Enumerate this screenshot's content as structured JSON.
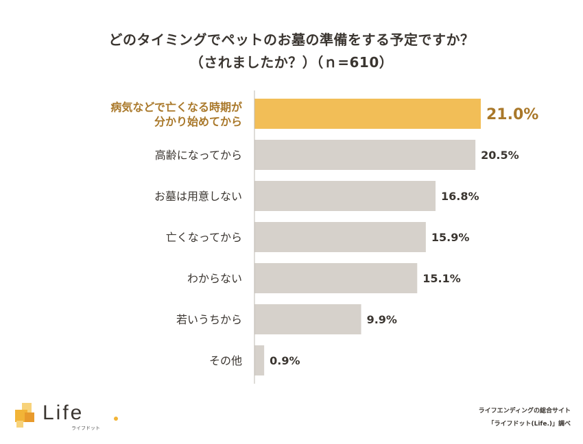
{
  "title_line1": "どのタイミングでペットのお墓の準備をする予定ですか？",
  "title_line2": "（されましたか？）（ｎ=610）",
  "chart_data": {
    "type": "bar",
    "orientation": "horizontal",
    "categories": [
      [
        "病気などで亡くなる時期が",
        "分かり始めてから"
      ],
      [
        "高齢になってから"
      ],
      [
        "お墓は用意しない"
      ],
      [
        "亡くなってから"
      ],
      [
        "わからない"
      ],
      [
        "若いうちから"
      ],
      [
        "その他"
      ]
    ],
    "values": [
      21.0,
      20.5,
      16.8,
      15.9,
      15.1,
      9.9,
      0.9
    ],
    "value_labels": [
      "21.0%",
      "20.5%",
      "16.8%",
      "15.9%",
      "15.1%",
      "9.9%",
      "0.9%"
    ],
    "highlight_index": 0,
    "unit": "%",
    "xlim": [
      0,
      22.5
    ],
    "colors": {
      "highlight": "#f2be57",
      "highlight_text": "#a9782a",
      "normal": "#d6d1cb",
      "text": "#3a3530",
      "axis": "#bdb8b2"
    }
  },
  "logo": {
    "word": "Life",
    "sub": "ライフドット",
    "colors": [
      "#f2b437",
      "#f7d27a",
      "#e89a2c"
    ]
  },
  "credit_line1": "ライフエンディングの総合サイト",
  "credit_line2": "「ライフドット(Life.)」調べ"
}
